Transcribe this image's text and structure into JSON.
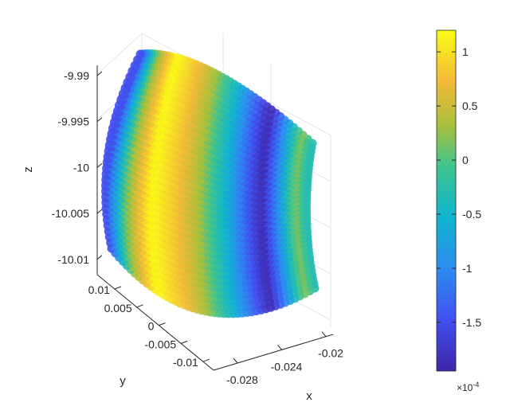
{
  "chart_data": {
    "type": "scatter",
    "subtype": "3d-scatter",
    "title": "",
    "xlabel": "x",
    "ylabel": "y",
    "zlabel": "z",
    "x_ticks": [
      "-0.028",
      "-0.024",
      "-0.02"
    ],
    "y_ticks": [
      "0.01",
      "0.005",
      "0",
      "-0.005",
      "-0.01"
    ],
    "z_ticks": [
      "-9.99",
      "-9.995",
      "-10",
      "-10.005",
      "-10.01"
    ],
    "xlim": [
      -0.03,
      -0.019
    ],
    "ylim": [
      -0.012,
      0.012
    ],
    "zlim": [
      -10.012,
      -9.988
    ],
    "grid": true,
    "colorbar": {
      "ticks": [
        "1",
        "0.5",
        "0",
        "-0.5",
        "-1",
        "-1.5"
      ],
      "tick_values": [
        1.0,
        0.5,
        0.0,
        -0.5,
        -1.0,
        -1.5
      ],
      "clim": [
        -1.95,
        1.2
      ],
      "multiplier": "×10",
      "exponent": "-4",
      "colormap": "parula"
    },
    "surface_description": "dense field of markers forming a curved sheet, colored by value",
    "value_profile": {
      "u": [
        0.0,
        0.12,
        0.25,
        0.38,
        0.5,
        0.62,
        0.72,
        0.8,
        0.88,
        0.95,
        1.0
      ],
      "value": [
        -1.5,
        0.2,
        1.2,
        0.8,
        0.3,
        -0.5,
        -1.3,
        -1.9,
        -0.9,
        0.2,
        -0.3
      ]
    }
  }
}
